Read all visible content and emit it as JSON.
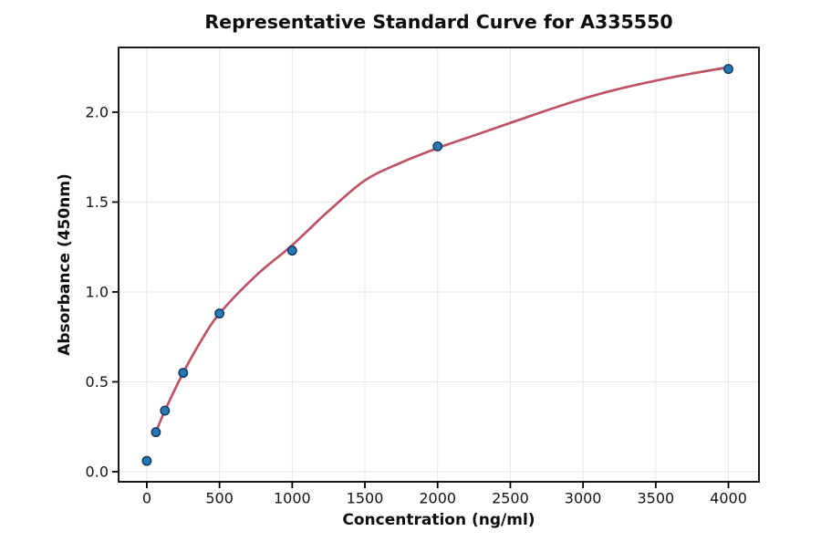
{
  "chart_data": {
    "type": "scatter",
    "title": "Representative Standard Curve for A335550",
    "xlabel": "Concentration (ng/ml)",
    "ylabel": "Absorbance (450nm)",
    "x_ticks": [
      0,
      500,
      1000,
      1500,
      2000,
      2500,
      3000,
      3500,
      4000
    ],
    "y_ticks": [
      "0.0",
      "0.5",
      "1.0",
      "1.5",
      "2.0"
    ],
    "xlim": [
      -194,
      4210
    ],
    "ylim": [
      -0.056,
      2.36
    ],
    "grid": true,
    "legend": "none",
    "points": {
      "x": [
        0,
        62.5,
        125,
        250,
        500,
        1000,
        2000,
        4000
      ],
      "y": [
        0.06,
        0.22,
        0.34,
        0.55,
        0.88,
        1.23,
        1.81,
        2.24
      ]
    },
    "fit_curve": {
      "x": [
        62.5,
        125,
        250,
        375,
        500,
        750,
        1000,
        1250,
        1500,
        1750,
        2000,
        2250,
        2500,
        2750,
        3000,
        3250,
        3500,
        3750,
        4000
      ],
      "y": [
        0.22,
        0.34,
        0.55,
        0.73,
        0.88,
        1.09,
        1.26,
        1.45,
        1.62,
        1.72,
        1.8,
        1.87,
        1.94,
        2.01,
        2.075,
        2.13,
        2.175,
        2.215,
        2.25
      ]
    },
    "colors": {
      "curve": "#bf5366",
      "marker_fill": "#2878b5",
      "marker_edge": "#16395f",
      "grid": "#e7e7e7",
      "axis": "#000000",
      "text": "#0d0d0d",
      "background": "#ffffff"
    }
  }
}
